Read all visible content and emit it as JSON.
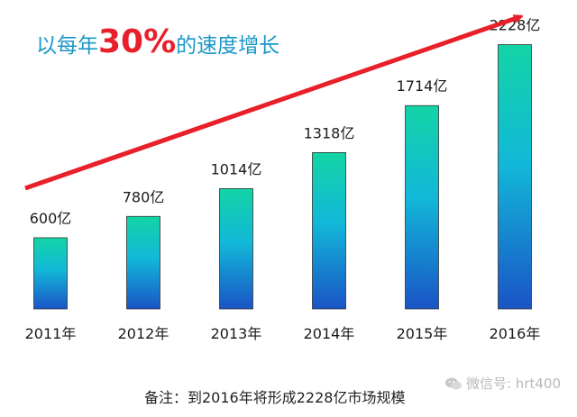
{
  "title": {
    "prefix": "以每年",
    "highlight": "30%",
    "suffix": "的速度增长"
  },
  "chart_data": {
    "type": "bar",
    "categories": [
      "2011年",
      "2012年",
      "2013年",
      "2014年",
      "2015年",
      "2016年"
    ],
    "values": [
      600,
      780,
      1014,
      1318,
      1714,
      2228
    ],
    "data_labels": [
      "600亿",
      "780亿",
      "1014亿",
      "1318亿",
      "1714亿",
      "2228亿"
    ],
    "title": "以每年30%的速度增长",
    "xlabel": "",
    "ylabel": "",
    "ylim": [
      0,
      2400
    ],
    "grid": false,
    "legend": "none",
    "colors": {
      "bar_top": "#13d4a6",
      "bar_mid": "#12b8d8",
      "bar_bottom": "#1a54c6",
      "arrow": "#e8202a"
    }
  },
  "note": "备注：到2016年将形成2228亿市场规模",
  "watermark": {
    "text": "微信号: hrt400",
    "icon": "wechat-icon"
  }
}
